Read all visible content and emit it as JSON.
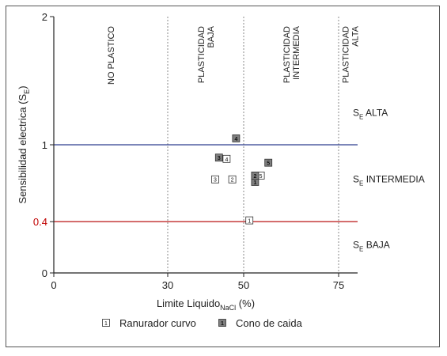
{
  "chart_data": {
    "type": "scatter",
    "xlabel": "Limite Liquido",
    "xlabel_sub": "NaCl",
    "xlabel_unit": "(%)",
    "ylabel": "Sensibilidad electrica (S",
    "ylabel_sub": "E",
    "ylabel_end": ")",
    "xlim": [
      0,
      80
    ],
    "ylim": [
      0,
      2
    ],
    "x_ticks": [
      {
        "value": 0,
        "label": "0"
      },
      {
        "value": 30,
        "label": "30"
      },
      {
        "value": 50,
        "label": "50"
      },
      {
        "value": 75,
        "label": "75"
      }
    ],
    "y_ticks": [
      {
        "value": 0,
        "label": "0"
      },
      {
        "value": 0.4,
        "label": "0.4",
        "color": "#c00000"
      },
      {
        "value": 1,
        "label": "1"
      },
      {
        "value": 2,
        "label": "2"
      }
    ],
    "hlines": [
      {
        "value": 1,
        "color": "#2f3f8f"
      },
      {
        "value": 0.4,
        "color": "#c0282a"
      }
    ],
    "vlines": [
      30,
      50,
      75
    ],
    "zones": [
      {
        "lines": [
          "NO PLASTICO"
        ],
        "x_center": 15
      },
      {
        "lines": [
          "PLASTICIDAD",
          "BAJA"
        ],
        "x_center": 40
      },
      {
        "lines": [
          "PLASTICIDAD",
          "INTERMEDIA"
        ],
        "x_center": 62.5
      },
      {
        "lines": [
          "PLASTICIDAD",
          "ALTA"
        ],
        "x_center": 78
      }
    ],
    "sensitivity_labels": [
      {
        "main": "S",
        "sub": "E",
        "text": "ALTA",
        "y": 1.25
      },
      {
        "main": "S",
        "sub": "E",
        "text": "INTERMEDIA",
        "y": 0.73
      },
      {
        "main": "S",
        "sub": "E",
        "text": "BAJA",
        "y": 0.22
      }
    ],
    "series": [
      {
        "name": "Ranurador curvo",
        "marker": "open-square",
        "points": [
          {
            "label": "1",
            "x": 51.5,
            "y": 0.41
          },
          {
            "label": "2",
            "x": 47.0,
            "y": 0.73
          },
          {
            "label": "3",
            "x": 42.5,
            "y": 0.73
          },
          {
            "label": "4",
            "x": 45.5,
            "y": 0.89
          },
          {
            "label": "5",
            "x": 54.5,
            "y": 0.76
          }
        ]
      },
      {
        "name": "Cono de caida",
        "marker": "filled-square",
        "points": [
          {
            "label": "1",
            "x": 53.0,
            "y": 0.71
          },
          {
            "label": "2",
            "x": 53.0,
            "y": 0.76
          },
          {
            "label": "3",
            "x": 43.5,
            "y": 0.9
          },
          {
            "label": "4",
            "x": 48.0,
            "y": 1.05
          },
          {
            "label": "5",
            "x": 56.5,
            "y": 0.86
          }
        ]
      }
    ],
    "legend": [
      {
        "label": "Ranurador curvo",
        "sample": "1",
        "marker": "open-square"
      },
      {
        "label": "Cono de caida",
        "sample": "1",
        "marker": "filled-square"
      }
    ],
    "grid": false,
    "legend_position": "bottom"
  }
}
